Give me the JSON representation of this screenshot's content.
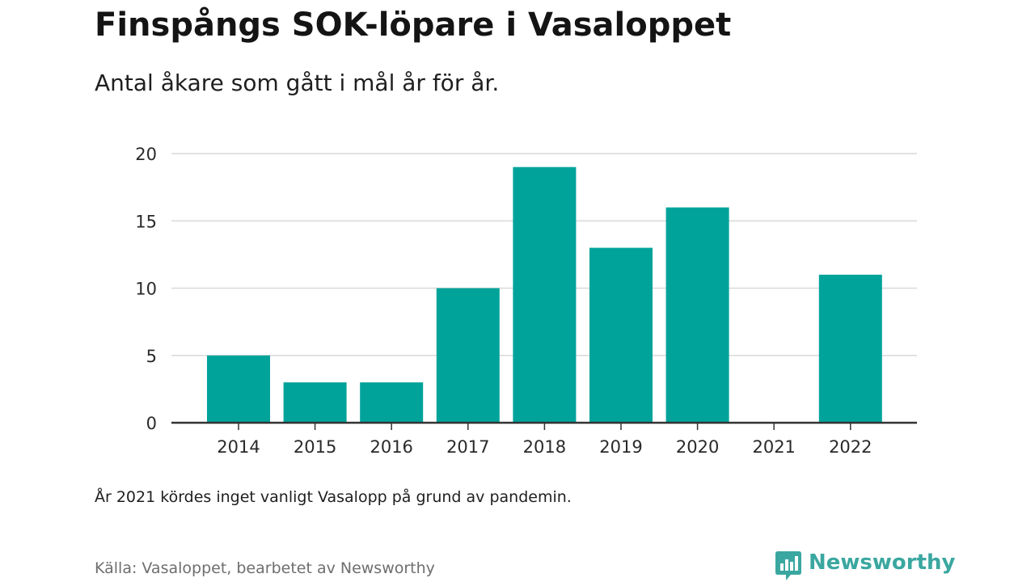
{
  "title": "Finspångs SOK-löpare i Vasaloppet",
  "subtitle": "Antal åkare som gått i mål år för år.",
  "note": "År 2021 kördes inget vanligt Vasalopp på grund av pandemin.",
  "source": "Källa: Vasaloppet, bearbetet av Newsworthy",
  "brand": {
    "name": "Newsworthy",
    "logo_icon": "newsworthy-bar-chart-logo-icon",
    "color": "#3aa7a0"
  },
  "colors": {
    "bar": "#00a39a",
    "grid": "#d9d9d9",
    "baseline": "#333333"
  },
  "chart_data": {
    "type": "bar",
    "categories": [
      "2014",
      "2015",
      "2016",
      "2017",
      "2018",
      "2019",
      "2020",
      "2021",
      "2022"
    ],
    "values": [
      5,
      3,
      3,
      10,
      19,
      13,
      16,
      0,
      11
    ],
    "yticks": [
      "0",
      "5",
      "10",
      "15",
      "20"
    ],
    "ylim": [
      0,
      20
    ],
    "grid": true,
    "xlabel": "",
    "ylabel": ""
  }
}
